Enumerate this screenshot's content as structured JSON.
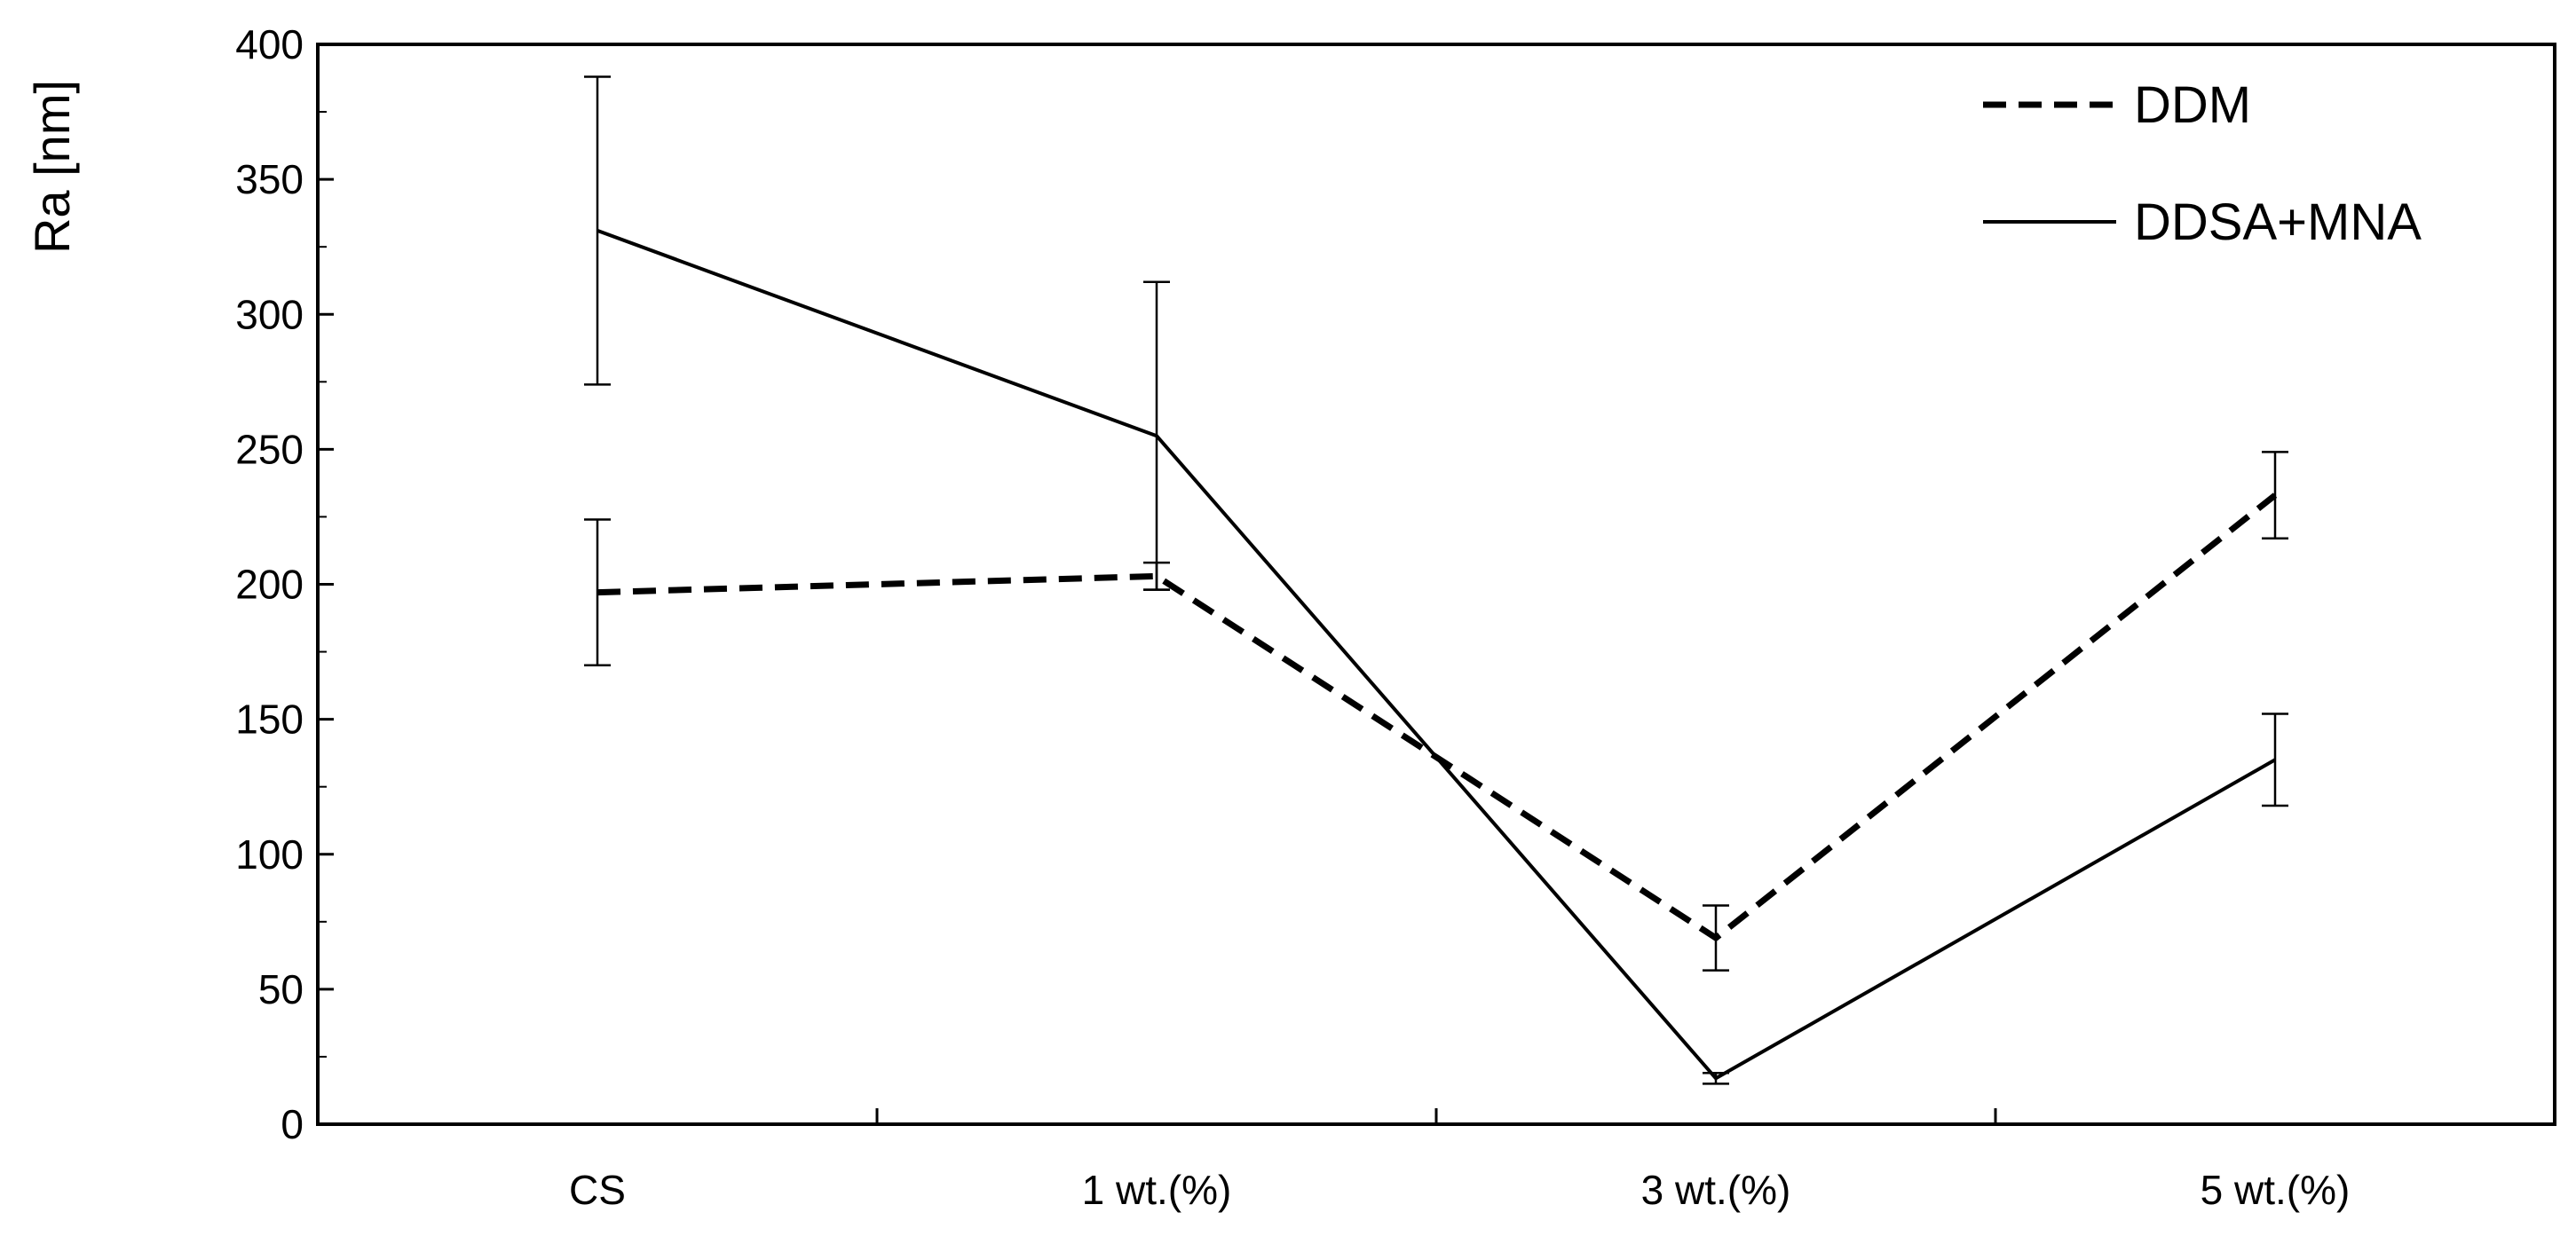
{
  "chart_data": {
    "type": "line",
    "categories": [
      "CS",
      "1 wt.(%)",
      "3 wt.(%)",
      "5 wt.(%)"
    ],
    "xlabel": "",
    "ylabel": "Ra [nm]",
    "ylim": [
      0,
      400
    ],
    "yticks": [
      0,
      50,
      100,
      150,
      200,
      250,
      300,
      350,
      400
    ],
    "ytick_labels": [
      "0",
      "50",
      "100",
      "150",
      "200",
      "250",
      "300",
      "350",
      "400"
    ],
    "grid": false,
    "legend_position": "top-right",
    "series": [
      {
        "name": "DDM",
        "line_style": "dashed",
        "color": "#000000",
        "values": [
          197,
          203,
          69,
          233
        ],
        "errors": [
          27,
          5,
          12,
          16
        ]
      },
      {
        "name": "DDSA+MNA",
        "line_style": "solid",
        "color": "#000000",
        "values": [
          331,
          255,
          17,
          135
        ],
        "errors": [
          57,
          57,
          2,
          17
        ]
      }
    ]
  }
}
